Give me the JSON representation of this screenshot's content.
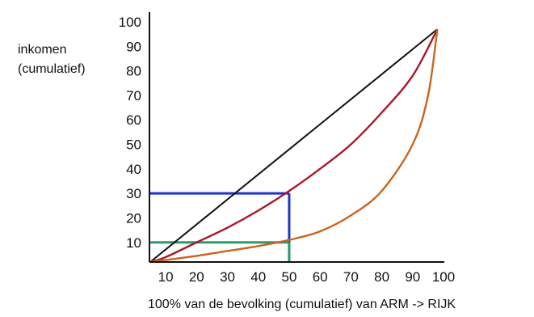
{
  "chart_data": {
    "type": "line",
    "title": "",
    "ylabel_lines": [
      "inkomen",
      "(cumulatief)"
    ],
    "xlabel": "100% van de bevolking (cumulatief) van ARM -> RIJK",
    "xlim": [
      5,
      100
    ],
    "ylim": [
      2,
      100
    ],
    "x_ticks": [
      "10",
      "20",
      "30",
      "40",
      "50",
      "60",
      "70",
      "80",
      "90",
      "100"
    ],
    "y_ticks": [
      "10",
      "20",
      "30",
      "40",
      "50",
      "60",
      "70",
      "80",
      "90",
      "100"
    ],
    "grid": false,
    "legend": "none",
    "series": [
      {
        "color": "#111111",
        "x": [
          5,
          98
        ],
        "y": [
          2,
          97
        ]
      },
      {
        "color": "#a8182a",
        "x": [
          5,
          10,
          20,
          30,
          40,
          50,
          60,
          70,
          80,
          90,
          98
        ],
        "y": [
          2,
          4,
          10,
          16,
          23,
          31,
          40,
          50,
          63,
          78,
          97
        ]
      },
      {
        "color": "#c8651e",
        "x": [
          5,
          10,
          20,
          30,
          40,
          50,
          60,
          70,
          80,
          90,
          95,
          98
        ],
        "y": [
          2,
          2.8,
          4.5,
          6.5,
          8.5,
          11,
          14.5,
          21,
          31,
          50,
          70,
          97
        ]
      }
    ],
    "guides": [
      {
        "color": "#1f35c4",
        "x": 50,
        "y": 30
      },
      {
        "color": "#2e9a6e",
        "x": 50,
        "y": 10
      }
    ]
  }
}
